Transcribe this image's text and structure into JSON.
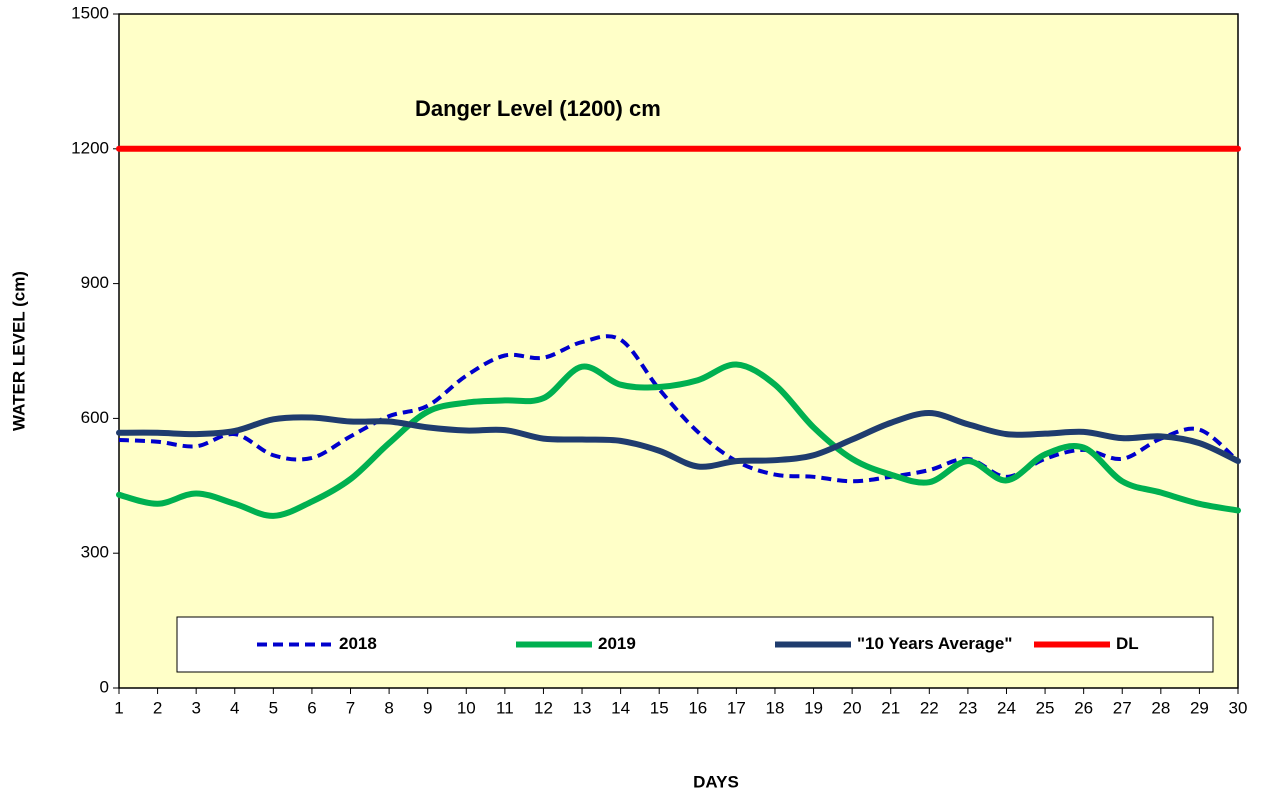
{
  "chart_data": {
    "type": "line",
    "annotations": [
      "Danger Level (1200) cm"
    ],
    "ylabel": "WATER LEVEL (cm)",
    "xlabel": "DAYS",
    "x": [
      1,
      2,
      3,
      4,
      5,
      6,
      7,
      8,
      9,
      10,
      11,
      12,
      13,
      14,
      15,
      16,
      17,
      18,
      19,
      20,
      21,
      22,
      23,
      24,
      25,
      26,
      27,
      28,
      29,
      30
    ],
    "xlim": [
      1,
      30
    ],
    "xticks": [
      1,
      2,
      3,
      4,
      5,
      6,
      7,
      8,
      9,
      10,
      11,
      12,
      13,
      14,
      15,
      16,
      17,
      18,
      19,
      20,
      21,
      22,
      23,
      24,
      25,
      26,
      27,
      28,
      29,
      30
    ],
    "ylim": [
      0,
      1500
    ],
    "yticks": [
      0,
      300,
      600,
      900,
      1200,
      1500
    ],
    "series": [
      {
        "name": "2018",
        "color": "#0000cc",
        "dash": true,
        "values": [
          552,
          548,
          538,
          565,
          518,
          512,
          560,
          605,
          628,
          695,
          740,
          735,
          770,
          775,
          665,
          570,
          505,
          475,
          470,
          460,
          470,
          485,
          510,
          470,
          510,
          530,
          510,
          555,
          575,
          505
        ]
      },
      {
        "name": "2019",
        "color": "#00b050",
        "dash": false,
        "values": [
          430,
          410,
          433,
          410,
          383,
          415,
          465,
          545,
          615,
          635,
          640,
          645,
          715,
          675,
          670,
          685,
          720,
          675,
          580,
          510,
          475,
          458,
          505,
          462,
          520,
          535,
          460,
          435,
          410,
          395
        ]
      },
      {
        "name": "\"10 Years Average\"",
        "color": "#1f3c6e",
        "dash": false,
        "values": [
          568,
          568,
          565,
          572,
          598,
          602,
          593,
          593,
          580,
          573,
          574,
          555,
          553,
          550,
          528,
          493,
          505,
          507,
          518,
          553,
          590,
          612,
          587,
          565,
          566,
          570,
          556,
          560,
          545,
          505
        ]
      },
      {
        "name": "DL",
        "color": "#ff0000",
        "dash": false,
        "values": [
          1200,
          1200,
          1200,
          1200,
          1200,
          1200,
          1200,
          1200,
          1200,
          1200,
          1200,
          1200,
          1200,
          1200,
          1200,
          1200,
          1200,
          1200,
          1200,
          1200,
          1200,
          1200,
          1200,
          1200,
          1200,
          1200,
          1200,
          1200,
          1200,
          1200
        ]
      }
    ],
    "legend": "bottom"
  }
}
